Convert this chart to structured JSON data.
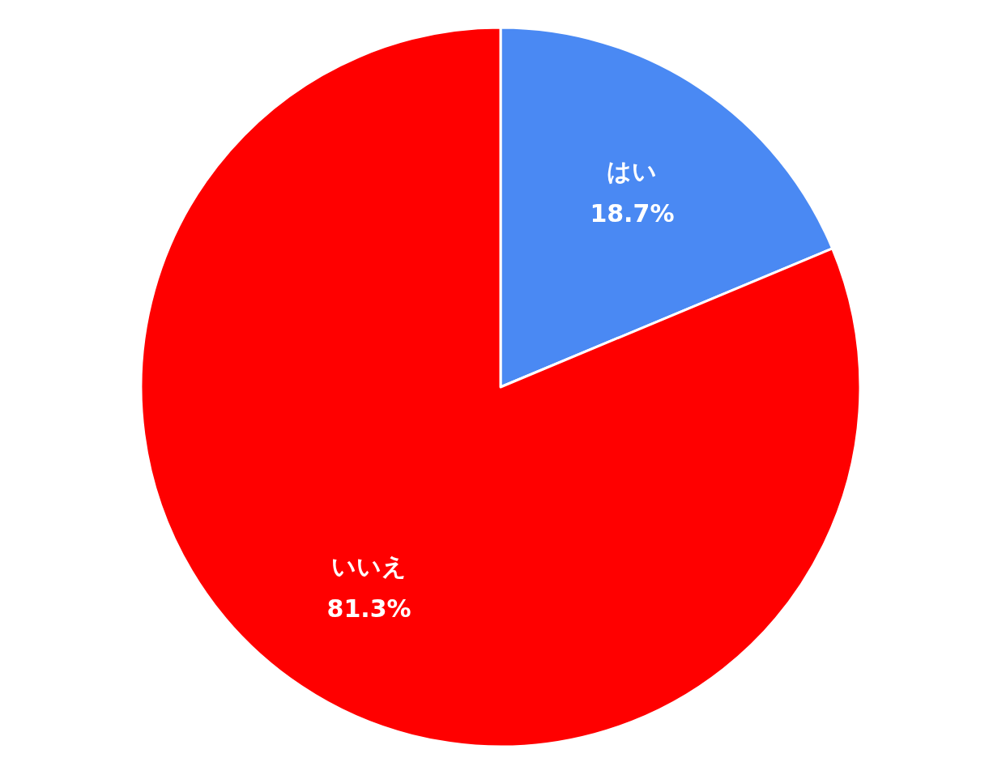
{
  "chart_data": {
    "type": "pie",
    "categories": [
      "はい",
      "いいえ"
    ],
    "values": [
      18.7,
      81.3
    ],
    "colors": [
      "#4a89f3",
      "#ff0000"
    ],
    "value_labels": [
      "18.7%",
      "81.3%"
    ],
    "legend": false
  }
}
